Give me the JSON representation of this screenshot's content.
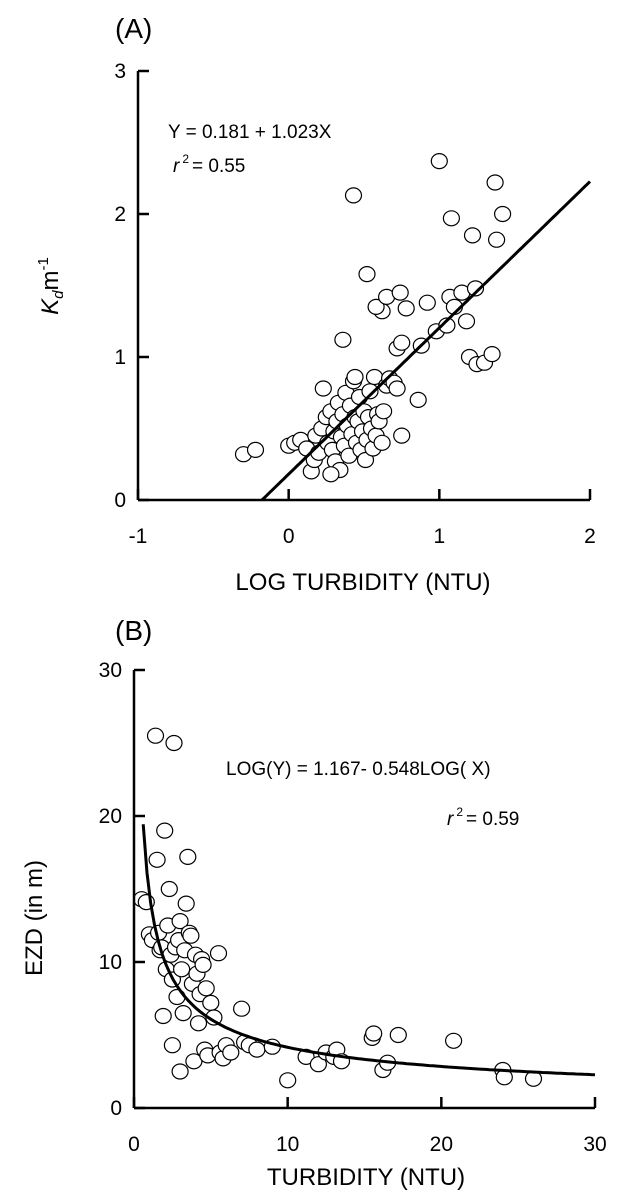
{
  "chart_data": [
    {
      "type": "scatter",
      "panel_label": "(A)",
      "xlabel": "LOG TURBIDITY (NTU)",
      "ylabel": {
        "main": "K",
        "sub": "d",
        "unit": "m",
        "sup": "-1"
      },
      "xlim": [
        -1,
        2
      ],
      "ylim": [
        0,
        3
      ],
      "xticks": [
        "-1",
        "0",
        "1",
        "2"
      ],
      "yticks": [
        "0",
        "1",
        "2",
        "3"
      ],
      "annotations": {
        "equation": "Y = 0.181 + 1.023X",
        "r2_prefix": "r",
        "r2_sup": "2",
        "r2_value": "= 0.55"
      },
      "fit": {
        "form": "linear",
        "intercept": 0.181,
        "slope": 1.023,
        "x_range": [
          -0.177,
          2
        ]
      },
      "points": [
        [
          -0.3,
          0.32
        ],
        [
          -0.22,
          0.35
        ],
        [
          0.0,
          0.38
        ],
        [
          0.04,
          0.4
        ],
        [
          0.08,
          0.42
        ],
        [
          0.12,
          0.36
        ],
        [
          0.15,
          0.2
        ],
        [
          0.17,
          0.28
        ],
        [
          0.18,
          0.45
        ],
        [
          0.2,
          0.33
        ],
        [
          0.22,
          0.5
        ],
        [
          0.23,
          0.78
        ],
        [
          0.25,
          0.58
        ],
        [
          0.26,
          0.4
        ],
        [
          0.28,
          0.62
        ],
        [
          0.29,
          0.35
        ],
        [
          0.3,
          0.48
        ],
        [
          0.31,
          0.27
        ],
        [
          0.32,
          0.55
        ],
        [
          0.33,
          0.68
        ],
        [
          0.34,
          0.21
        ],
        [
          0.35,
          0.44
        ],
        [
          0.36,
          0.6
        ],
        [
          0.37,
          0.38
        ],
        [
          0.38,
          0.75
        ],
        [
          0.39,
          0.52
        ],
        [
          0.4,
          0.31
        ],
        [
          0.41,
          0.66
        ],
        [
          0.42,
          0.46
        ],
        [
          0.43,
          0.83
        ],
        [
          0.44,
          0.58
        ],
        [
          0.45,
          0.4
        ],
        [
          0.46,
          0.55
        ],
        [
          0.47,
          0.72
        ],
        [
          0.48,
          0.35
        ],
        [
          0.49,
          0.48
        ],
        [
          0.5,
          0.62
        ],
        [
          0.51,
          0.28
        ],
        [
          0.52,
          0.42
        ],
        [
          0.53,
          0.58
        ],
        [
          0.54,
          0.76
        ],
        [
          0.55,
          0.5
        ],
        [
          0.56,
          0.36
        ],
        [
          0.57,
          0.86
        ],
        [
          0.58,
          0.45
        ],
        [
          0.59,
          0.6
        ],
        [
          0.6,
          0.55
        ],
        [
          0.62,
          0.4
        ],
        [
          0.63,
          0.62
        ],
        [
          0.65,
          0.8
        ],
        [
          0.67,
          0.85
        ],
        [
          0.7,
          0.82
        ],
        [
          0.72,
          0.78
        ],
        [
          0.75,
          0.45
        ],
        [
          0.36,
          1.12
        ],
        [
          0.44,
          0.86
        ],
        [
          0.62,
          1.32
        ],
        [
          0.58,
          1.35
        ],
        [
          0.52,
          1.58
        ],
        [
          0.65,
          1.42
        ],
        [
          0.74,
          1.45
        ],
        [
          0.78,
          1.34
        ],
        [
          0.72,
          1.06
        ],
        [
          0.75,
          1.1
        ],
        [
          0.88,
          1.08
        ],
        [
          0.92,
          1.38
        ],
        [
          0.98,
          1.18
        ],
        [
          1.05,
          1.22
        ],
        [
          1.07,
          1.42
        ],
        [
          1.1,
          1.35
        ],
        [
          1.15,
          1.45
        ],
        [
          1.18,
          1.25
        ],
        [
          1.2,
          1.0
        ],
        [
          1.24,
          1.48
        ],
        [
          1.25,
          0.95
        ],
        [
          1.3,
          0.96
        ],
        [
          1.35,
          1.02
        ],
        [
          1.38,
          1.82
        ],
        [
          1.22,
          1.85
        ],
        [
          1.08,
          1.97
        ],
        [
          1.42,
          2.0
        ],
        [
          1.37,
          2.22
        ],
        [
          1.0,
          2.37
        ],
        [
          0.43,
          2.13
        ],
        [
          0.86,
          0.7
        ],
        [
          0.28,
          0.18
        ]
      ]
    },
    {
      "type": "scatter",
      "panel_label": "(B)",
      "xlabel": "TURBIDITY (NTU)",
      "ylabel": "EZD (in m)",
      "xlim": [
        0,
        30
      ],
      "ylim": [
        0,
        30
      ],
      "xticks": [
        "0",
        "10",
        "20",
        "30"
      ],
      "yticks": [
        "0",
        "10",
        "20",
        "30"
      ],
      "annotations": {
        "equation": "LOG(Y) = 1.167- 0.548LOG( X)",
        "r2_prefix": "r",
        "r2_sup": "2",
        "r2_value": "= 0.59"
      },
      "fit": {
        "form": "log-log",
        "intercept": 1.167,
        "slope": -0.548,
        "x_range": [
          0.6,
          30
        ]
      },
      "points": [
        [
          0.5,
          14.3
        ],
        [
          0.8,
          14.1
        ],
        [
          1.0,
          11.9
        ],
        [
          1.2,
          11.5
        ],
        [
          1.4,
          25.5
        ],
        [
          1.5,
          17.0
        ],
        [
          1.6,
          12.0
        ],
        [
          1.7,
          10.8
        ],
        [
          1.8,
          11.0
        ],
        [
          1.9,
          6.3
        ],
        [
          2.0,
          19.0
        ],
        [
          2.1,
          9.5
        ],
        [
          2.2,
          12.5
        ],
        [
          2.3,
          15.0
        ],
        [
          2.4,
          10.5
        ],
        [
          2.5,
          8.8
        ],
        [
          2.5,
          4.3
        ],
        [
          2.6,
          25.0
        ],
        [
          2.7,
          11.0
        ],
        [
          2.8,
          7.6
        ],
        [
          2.9,
          11.5
        ],
        [
          3.0,
          12.8
        ],
        [
          3.0,
          2.5
        ],
        [
          3.1,
          9.5
        ],
        [
          3.2,
          6.5
        ],
        [
          3.3,
          10.8
        ],
        [
          3.4,
          14.0
        ],
        [
          3.5,
          17.2
        ],
        [
          3.6,
          12.0
        ],
        [
          3.7,
          11.8
        ],
        [
          3.8,
          8.5
        ],
        [
          3.9,
          3.2
        ],
        [
          4.0,
          10.5
        ],
        [
          4.1,
          9.2
        ],
        [
          4.2,
          5.8
        ],
        [
          4.3,
          7.8
        ],
        [
          4.4,
          10.2
        ],
        [
          4.5,
          9.8
        ],
        [
          4.6,
          4.0
        ],
        [
          4.7,
          8.2
        ],
        [
          4.8,
          3.6
        ],
        [
          5.0,
          7.2
        ],
        [
          5.2,
          6.2
        ],
        [
          5.5,
          10.6
        ],
        [
          5.6,
          3.8
        ],
        [
          5.8,
          3.4
        ],
        [
          6.0,
          4.3
        ],
        [
          6.3,
          3.8
        ],
        [
          7.0,
          6.8
        ],
        [
          7.2,
          4.5
        ],
        [
          7.5,
          4.3
        ],
        [
          8.0,
          4.0
        ],
        [
          9.0,
          4.2
        ],
        [
          10.0,
          1.9
        ],
        [
          11.2,
          3.5
        ],
        [
          12.0,
          3.0
        ],
        [
          12.5,
          3.8
        ],
        [
          13.0,
          3.5
        ],
        [
          13.2,
          4.0
        ],
        [
          13.5,
          3.2
        ],
        [
          15.5,
          4.8
        ],
        [
          15.6,
          5.1
        ],
        [
          16.2,
          2.6
        ],
        [
          16.5,
          3.1
        ],
        [
          17.2,
          5.0
        ],
        [
          20.8,
          4.6
        ],
        [
          24.0,
          2.6
        ],
        [
          24.1,
          2.1
        ],
        [
          26.0,
          2.0
        ]
      ]
    }
  ]
}
